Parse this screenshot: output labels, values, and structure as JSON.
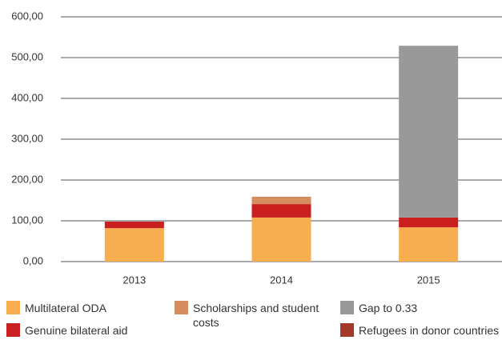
{
  "chart_data": {
    "type": "stacked_bar",
    "categories": [
      "2013",
      "2014",
      "2015"
    ],
    "series": [
      {
        "name": "Multilateral ODA",
        "color": "#f7ae4f",
        "values": [
          82,
          108,
          84
        ]
      },
      {
        "name": "Genuine bilateral aid",
        "color": "#c9201f",
        "values": [
          16,
          33,
          24
        ]
      },
      {
        "name": "Scholarships and student costs",
        "color": "#d48d5e",
        "values": [
          0,
          18,
          0
        ]
      },
      {
        "name": "Gap to 0.33",
        "color": "#999999",
        "values": [
          0,
          0,
          421
        ]
      },
      {
        "name": "Refugees in donor countries",
        "color": "#a33a2a",
        "values": [
          0,
          0,
          0
        ]
      }
    ],
    "ylim": [
      0,
      600
    ],
    "yticks": [
      {
        "value": 0,
        "label": "0,00"
      },
      {
        "value": 100,
        "label": "100,00"
      },
      {
        "value": 200,
        "label": "200,00"
      },
      {
        "value": 300,
        "label": "300,00"
      },
      {
        "value": 400,
        "label": "400,00"
      },
      {
        "value": 500,
        "label": "500,00"
      },
      {
        "value": 600,
        "label": "600,00"
      }
    ],
    "grid": true
  }
}
